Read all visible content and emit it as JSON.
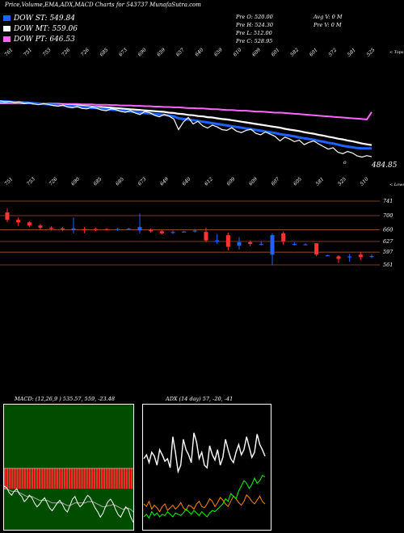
{
  "header": {
    "title": "Price,Volume,EMA,ADX,MACD Charts for 543737 MunafaSutra.com"
  },
  "legend": [
    {
      "label": "DOW ST: 549.84",
      "color": "#1e63ff"
    },
    {
      "label": "DOW MT: 559.06",
      "color": "#ffffff"
    },
    {
      "label": "DOW PT: 646.53",
      "color": "#ff66ff"
    }
  ],
  "stats": {
    "left": [
      "Pre O: 520.00",
      "Pre H: 524.30",
      "Pre L: 512.00",
      "Pre C: 528.95"
    ],
    "right": [
      "Avg V: 0 M",
      "Pre V: 0 M"
    ]
  },
  "chart_data": [
    {
      "type": "line",
      "name": "price-ema-panel",
      "x_tick_labels": [
        "761",
        "751",
        "753",
        "726",
        "726",
        "685",
        "673",
        "690",
        "659",
        "657",
        "640",
        "659",
        "610",
        "609",
        "601",
        "582",
        "601",
        "572",
        "581",
        "525"
      ],
      "series": [
        {
          "name": "Price",
          "color": "#ffffff",
          "values": [
            676,
            674,
            675,
            672,
            673,
            670,
            671,
            668,
            666,
            669,
            667,
            664,
            662,
            665,
            660,
            658,
            661,
            656,
            655,
            659,
            657,
            652,
            650,
            655,
            653,
            648,
            646,
            650,
            644,
            640,
            648,
            645,
            638,
            634,
            640,
            636,
            628,
            600,
            620,
            632,
            615,
            622,
            610,
            604,
            612,
            607,
            600,
            598,
            605,
            596,
            592,
            598,
            601,
            590,
            586,
            594,
            588,
            582,
            570,
            580,
            575,
            568,
            572,
            560,
            566,
            570,
            562,
            555,
            548,
            552,
            540,
            536,
            542,
            538,
            530,
            527,
            531,
            528
          ]
        },
        {
          "name": "DOW ST",
          "color": "#1e63ff",
          "values": [
            675,
            675,
            674,
            673,
            673,
            672,
            671,
            670,
            669,
            668,
            667,
            666,
            665,
            664,
            663,
            662,
            661,
            660,
            659,
            658,
            657,
            655,
            654,
            653,
            652,
            651,
            649,
            648,
            647,
            645,
            644,
            643,
            641,
            640,
            639,
            637,
            635,
            630,
            628,
            627,
            625,
            623,
            621,
            619,
            617,
            615,
            613,
            611,
            609,
            607,
            605,
            603,
            601,
            599,
            597,
            595,
            593,
            591,
            588,
            586,
            584,
            582,
            579,
            577,
            575,
            573,
            570,
            568,
            565,
            563,
            560,
            557,
            555,
            553,
            551,
            550,
            550,
            550
          ]
        },
        {
          "name": "DOW MT",
          "color": "#ffffff",
          "values": [
            672,
            672,
            672,
            671,
            671,
            670,
            670,
            669,
            669,
            668,
            668,
            667,
            666,
            666,
            665,
            664,
            664,
            663,
            662,
            661,
            660,
            660,
            659,
            658,
            657,
            656,
            655,
            654,
            653,
            652,
            651,
            650,
            649,
            648,
            647,
            645,
            644,
            642,
            641,
            639,
            638,
            636,
            635,
            633,
            632,
            630,
            628,
            627,
            625,
            623,
            621,
            619,
            617,
            615,
            613,
            611,
            609,
            607,
            605,
            602,
            600,
            598,
            596,
            593,
            591,
            589,
            586,
            584,
            581,
            579,
            576,
            574,
            571,
            569,
            566,
            563,
            561,
            559
          ]
        },
        {
          "name": "DOW PT",
          "color": "#ff66ff",
          "values": [
            670,
            670,
            670,
            670,
            670,
            670,
            670,
            669,
            669,
            669,
            669,
            669,
            669,
            668,
            668,
            668,
            668,
            667,
            667,
            667,
            666,
            666,
            666,
            665,
            665,
            664,
            664,
            664,
            663,
            663,
            662,
            662,
            661,
            661,
            660,
            660,
            659,
            659,
            658,
            657,
            657,
            656,
            656,
            655,
            654,
            654,
            653,
            652,
            652,
            651,
            650,
            650,
            649,
            648,
            648,
            647,
            646,
            645,
            645,
            644,
            643,
            642,
            641,
            640,
            639,
            638,
            637,
            636,
            635,
            634,
            633,
            632,
            631,
            630,
            629,
            628,
            627,
            646.53
          ]
        }
      ],
      "last_price_label": "484.85",
      "top_right_label": "< Tops"
    },
    {
      "type": "candlestick",
      "name": "candle-panel",
      "x_tick_labels": [
        "751",
        "753",
        "726",
        "690",
        "685",
        "685",
        "673",
        "649",
        "640",
        "612",
        "609",
        "609",
        "607",
        "605",
        "581",
        "525",
        "510"
      ],
      "y_tick_labels": [
        "741",
        "700",
        "660",
        "627",
        "597",
        "561"
      ],
      "corner_label": "< Lows",
      "candles": [
        {
          "o": 709,
          "c": 688,
          "h": 720,
          "l": 682
        },
        {
          "o": 688,
          "c": 681,
          "h": 695,
          "l": 670
        },
        {
          "o": 681,
          "c": 672,
          "h": 684,
          "l": 668
        },
        {
          "o": 672,
          "c": 666,
          "h": 676,
          "l": 660
        },
        {
          "o": 666,
          "c": 663,
          "h": 670,
          "l": 658
        },
        {
          "o": 664,
          "c": 662,
          "h": 668,
          "l": 656
        },
        {
          "o": 660,
          "c": 664,
          "h": 695,
          "l": 650
        },
        {
          "o": 662,
          "c": 660,
          "h": 668,
          "l": 650
        },
        {
          "o": 662,
          "c": 661,
          "h": 666,
          "l": 656
        },
        {
          "o": 662,
          "c": 661,
          "h": 664,
          "l": 658
        },
        {
          "o": 661,
          "c": 662,
          "h": 666,
          "l": 657
        },
        {
          "o": 662,
          "c": 663,
          "h": 665,
          "l": 660
        },
        {
          "o": 658,
          "c": 668,
          "h": 706,
          "l": 650
        },
        {
          "o": 660,
          "c": 656,
          "h": 664,
          "l": 652
        },
        {
          "o": 656,
          "c": 650,
          "h": 660,
          "l": 647
        },
        {
          "o": 652,
          "c": 654,
          "h": 658,
          "l": 648
        },
        {
          "o": 655,
          "c": 655,
          "h": 657,
          "l": 652
        },
        {
          "o": 656,
          "c": 658,
          "h": 662,
          "l": 652
        },
        {
          "o": 654,
          "c": 630,
          "h": 666,
          "l": 625
        },
        {
          "o": 630,
          "c": 630,
          "h": 648,
          "l": 620
        },
        {
          "o": 645,
          "c": 612,
          "h": 652,
          "l": 602
        },
        {
          "o": 615,
          "c": 625,
          "h": 640,
          "l": 605
        },
        {
          "o": 625,
          "c": 620,
          "h": 630,
          "l": 614
        },
        {
          "o": 620,
          "c": 620,
          "h": 628,
          "l": 616
        },
        {
          "o": 590,
          "c": 645,
          "h": 650,
          "l": 560
        },
        {
          "o": 650,
          "c": 628,
          "h": 655,
          "l": 618
        },
        {
          "o": 620,
          "c": 620,
          "h": 625,
          "l": 615
        },
        {
          "o": 619,
          "c": 619,
          "h": 622,
          "l": 617
        },
        {
          "o": 622,
          "c": 590,
          "h": 622,
          "l": 585
        },
        {
          "o": 588,
          "c": 588,
          "h": 590,
          "l": 586
        },
        {
          "o": 585,
          "c": 578,
          "h": 588,
          "l": 566
        },
        {
          "o": 585,
          "c": 585,
          "h": 592,
          "l": 570
        },
        {
          "o": 590,
          "c": 583,
          "h": 598,
          "l": 575
        },
        {
          "o": 584,
          "c": 586,
          "h": 590,
          "l": 580
        }
      ]
    },
    {
      "type": "bar",
      "name": "macd-panel",
      "title": "MACD: (12,26,9 ) 535.57, 559, -23.48",
      "histogram": [
        -18,
        -18,
        -18,
        -18,
        -18,
        -18,
        -18,
        -18,
        -18,
        -18,
        -18,
        -18,
        -18,
        -18,
        -18,
        -18,
        -18,
        -18,
        -18,
        -18,
        -18,
        -18,
        -18,
        -18,
        -18,
        -18,
        -18,
        -18,
        -18,
        -18,
        -18,
        -18,
        -18,
        -18,
        -18,
        -18,
        -18,
        -18,
        -18,
        -18,
        -18,
        -18,
        -18,
        -18,
        -18,
        -18,
        -18,
        -18,
        -18,
        -18,
        -18,
        -18
      ],
      "series": [
        {
          "name": "MACD",
          "color": "#ffffff",
          "values": [
            -20,
            -21,
            -25,
            -27,
            -24,
            -22,
            -26,
            -28,
            -32,
            -30,
            -27,
            -29,
            -33,
            -36,
            -34,
            -31,
            -29,
            -33,
            -37,
            -39,
            -36,
            -33,
            -31,
            -34,
            -38,
            -40,
            -35,
            -30,
            -28,
            -33,
            -36,
            -34,
            -30,
            -27,
            -29,
            -33,
            -37,
            -40,
            -44,
            -41,
            -36,
            -32,
            -30,
            -33,
            -38,
            -42,
            -44,
            -40,
            -36,
            -38,
            -44,
            -48
          ]
        },
        {
          "name": "Signal",
          "color": "#aaaaaa",
          "values": [
            -22,
            -22,
            -23,
            -24,
            -24,
            -24,
            -25,
            -26,
            -27,
            -28,
            -28,
            -28,
            -29,
            -30,
            -31,
            -31,
            -31,
            -31,
            -32,
            -33,
            -33,
            -33,
            -33,
            -33,
            -34,
            -35,
            -35,
            -34,
            -33,
            -33,
            -33,
            -33,
            -33,
            -32,
            -32,
            -32,
            -33,
            -34,
            -35,
            -36,
            -36,
            -35,
            -35,
            -34,
            -35,
            -36,
            -37,
            -38,
            -37,
            -37,
            -38,
            -40
          ]
        }
      ]
    },
    {
      "type": "line",
      "name": "adx-panel",
      "title": "ADX (14 day) 57, -20, -41",
      "series": [
        {
          "name": "ADX",
          "color": "#ffffff",
          "values": [
            55,
            58,
            52,
            60,
            57,
            50,
            62,
            58,
            53,
            55,
            48,
            72,
            60,
            45,
            50,
            70,
            62,
            58,
            52,
            75,
            68,
            55,
            60,
            50,
            48,
            65,
            58,
            54,
            62,
            50,
            56,
            70,
            62,
            55,
            52,
            60,
            66,
            58,
            62,
            72,
            64,
            56,
            60,
            74,
            66,
            62,
            57
          ]
        },
        {
          "name": "+DI",
          "color": "#ff8800",
          "values": [
            20,
            18,
            22,
            16,
            19,
            17,
            14,
            18,
            20,
            15,
            17,
            19,
            16,
            18,
            21,
            17,
            15,
            19,
            18,
            16,
            20,
            22,
            18,
            17,
            20,
            24,
            22,
            18,
            21,
            25,
            23,
            20,
            18,
            22,
            26,
            24,
            21,
            19,
            22,
            27,
            25,
            22,
            20,
            23,
            26,
            22,
            20
          ]
        },
        {
          "name": "-DI",
          "color": "#00ff00",
          "values": [
            10,
            12,
            9,
            14,
            11,
            13,
            10,
            12,
            11,
            14,
            12,
            10,
            13,
            12,
            11,
            13,
            16,
            14,
            12,
            15,
            13,
            11,
            14,
            12,
            10,
            13,
            15,
            14,
            16,
            18,
            20,
            24,
            22,
            28,
            26,
            24,
            30,
            34,
            38,
            36,
            32,
            35,
            40,
            36,
            38,
            42,
            41
          ]
        }
      ]
    }
  ]
}
